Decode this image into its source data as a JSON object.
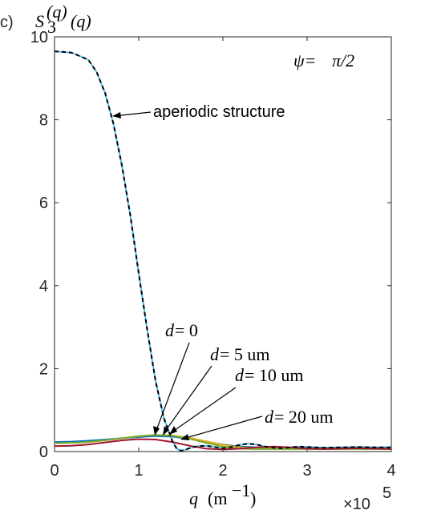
{
  "panel_label": "c)",
  "chart_data": {
    "type": "line",
    "title": "",
    "ylabel": {
      "base": "S",
      "sub": "3",
      "sup": "(q)",
      "arg": "(q)"
    },
    "xlabel": {
      "var": "q",
      "unit": "(m",
      "exp": "−1",
      "close": ")"
    },
    "x_multiplier": {
      "times": "×10",
      "exp": "5"
    },
    "xlim": [
      0,
      4
    ],
    "ylim": [
      0,
      10
    ],
    "xticks": [
      "0",
      "1",
      "2",
      "3",
      "4"
    ],
    "yticks": [
      "0",
      "2",
      "4",
      "6",
      "8",
      "10"
    ],
    "grid": false,
    "psi_annotation": {
      "lhs": "ψ",
      "eq": " = ",
      "rhs": "π/2"
    },
    "annotations": {
      "aperiodic": "aperiodic structure",
      "d0": {
        "lhs": "d",
        "rhs": " = 0"
      },
      "d5": {
        "lhs": "d",
        "rhs": " = 5 um"
      },
      "d10": {
        "lhs": "d",
        "rhs": " = 10 um"
      },
      "d20": {
        "lhs": "d",
        "rhs": " = 20 um"
      }
    },
    "series": [
      {
        "color": "#4dbeee",
        "dash": "none",
        "x": [
          0,
          0.2,
          0.4,
          0.5,
          0.6,
          0.7,
          0.8,
          0.9,
          1.0,
          1.1,
          1.2,
          1.3,
          1.4,
          1.45,
          1.5,
          1.55,
          1.6,
          1.7,
          1.8,
          1.9,
          2.0,
          2.1,
          2.2,
          2.3,
          2.4,
          2.5,
          2.6,
          2.7,
          2.8,
          2.9,
          3.0,
          3.2,
          3.4,
          3.6,
          3.8,
          4.0
        ],
        "values": [
          9.65,
          9.62,
          9.45,
          9.15,
          8.65,
          7.9,
          6.9,
          5.7,
          4.3,
          2.95,
          1.7,
          0.8,
          0.25,
          0.07,
          0.02,
          0.04,
          0.08,
          0.13,
          0.14,
          0.11,
          0.08,
          0.11,
          0.16,
          0.19,
          0.17,
          0.12,
          0.09,
          0.08,
          0.1,
          0.12,
          0.11,
          0.09,
          0.1,
          0.11,
          0.1,
          0.1
        ]
      },
      {
        "color": "#0072bd",
        "dash": "none",
        "x": [
          0,
          0.2,
          0.4,
          0.6,
          0.8,
          1.0,
          1.2,
          1.4,
          1.6,
          1.8,
          2.0,
          2.2,
          2.4,
          2.6,
          2.8,
          3.0,
          3.2,
          3.4,
          3.6,
          3.8,
          4.0
        ],
        "values": [
          0.23,
          0.24,
          0.26,
          0.29,
          0.32,
          0.35,
          0.37,
          0.36,
          0.31,
          0.24,
          0.17,
          0.12,
          0.1,
          0.09,
          0.09,
          0.09,
          0.09,
          0.09,
          0.09,
          0.09,
          0.09
        ]
      },
      {
        "color": "#edb120",
        "dash": "none",
        "x": [
          0,
          0.2,
          0.4,
          0.6,
          0.8,
          1.0,
          1.2,
          1.4,
          1.6,
          1.8,
          2.0,
          2.2,
          2.4,
          2.6,
          2.8,
          3.0,
          3.2,
          3.4,
          3.6,
          3.8,
          4.0
        ],
        "values": [
          0.2,
          0.21,
          0.23,
          0.27,
          0.32,
          0.37,
          0.4,
          0.39,
          0.33,
          0.25,
          0.16,
          0.1,
          0.08,
          0.07,
          0.07,
          0.07,
          0.07,
          0.07,
          0.07,
          0.07,
          0.07
        ]
      },
      {
        "color": "#77ac30",
        "dash": "none",
        "x": [
          0,
          0.2,
          0.4,
          0.6,
          0.8,
          1.0,
          1.2,
          1.4,
          1.6,
          1.8,
          2.0,
          2.2,
          2.4,
          2.6,
          2.8,
          3.0,
          3.2,
          3.4,
          3.6,
          3.8,
          4.0
        ],
        "values": [
          0.2,
          0.21,
          0.23,
          0.27,
          0.32,
          0.37,
          0.4,
          0.38,
          0.31,
          0.21,
          0.12,
          0.07,
          0.06,
          0.06,
          0.06,
          0.06,
          0.06,
          0.06,
          0.06,
          0.06,
          0.06
        ]
      },
      {
        "color": "#a2142f",
        "dash": "none",
        "x": [
          0,
          0.2,
          0.4,
          0.6,
          0.8,
          1.0,
          1.2,
          1.4,
          1.6,
          1.8,
          2.0,
          2.2,
          2.4,
          2.6,
          2.8,
          3.0,
          3.2,
          3.4,
          3.6,
          3.8,
          4.0
        ],
        "values": [
          0.13,
          0.14,
          0.17,
          0.22,
          0.27,
          0.3,
          0.29,
          0.23,
          0.14,
          0.07,
          0.05,
          0.07,
          0.1,
          0.12,
          0.1,
          0.07,
          0.06,
          0.07,
          0.08,
          0.07,
          0.06
        ]
      },
      {
        "color": "#000000",
        "dash": "5,4",
        "x": [
          0,
          0.2,
          0.4,
          0.5,
          0.6,
          0.7,
          0.8,
          0.9,
          1.0,
          1.1,
          1.2,
          1.3,
          1.4,
          1.45,
          1.5,
          1.55,
          1.6,
          1.7,
          1.8,
          1.9,
          2.0,
          2.1,
          2.2,
          2.3,
          2.4,
          2.5,
          2.6,
          2.7,
          2.8,
          2.9,
          3.0,
          3.2,
          3.4,
          3.6,
          3.8,
          4.0
        ],
        "values": [
          9.65,
          9.62,
          9.45,
          9.15,
          8.65,
          7.9,
          6.9,
          5.7,
          4.3,
          2.95,
          1.7,
          0.8,
          0.25,
          0.07,
          0.02,
          0.04,
          0.08,
          0.13,
          0.14,
          0.11,
          0.08,
          0.11,
          0.16,
          0.19,
          0.17,
          0.12,
          0.09,
          0.08,
          0.1,
          0.12,
          0.11,
          0.09,
          0.1,
          0.11,
          0.1,
          0.1
        ]
      }
    ]
  }
}
